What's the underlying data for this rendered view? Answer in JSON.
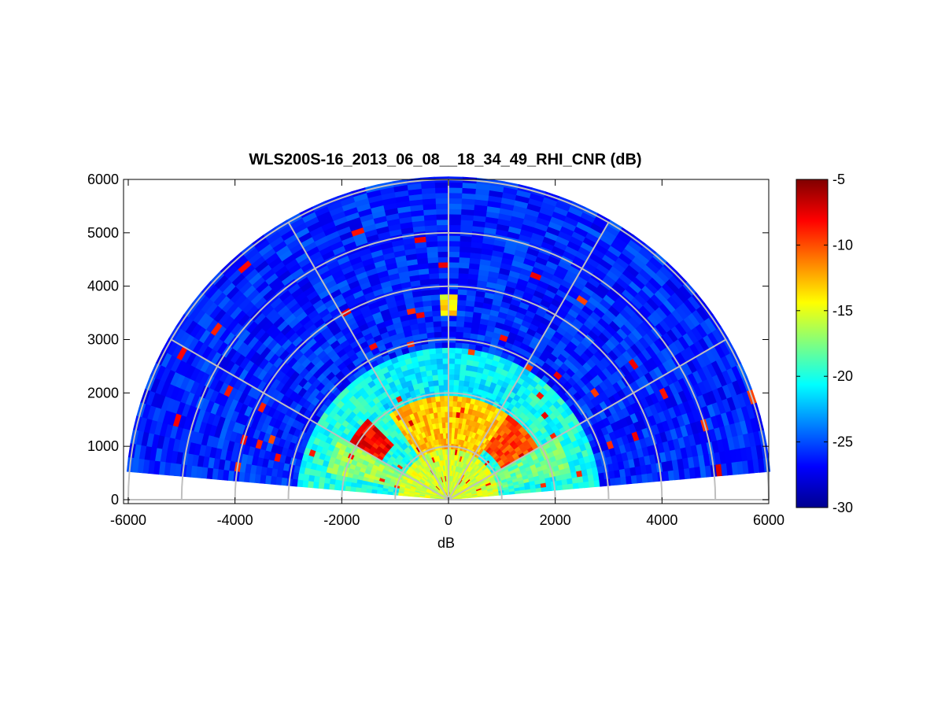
{
  "chart_data": {
    "type": "heatmap",
    "subtype": "polar-sector (RHI)",
    "title": "WLS200S-16_2013_06_08__18_34_49_RHI_CNR (dB)",
    "xlabel": "dB",
    "ylabel": "",
    "xlim": [
      -6000,
      6000
    ],
    "ylim": [
      0,
      6000
    ],
    "x_ticks": [
      -6000,
      -4000,
      -2000,
      0,
      2000,
      4000,
      6000
    ],
    "y_ticks": [
      0,
      1000,
      2000,
      3000,
      4000,
      5000,
      6000
    ],
    "x_tick_labels": [
      "-6000",
      "-4000",
      "-2000",
      "0",
      "2000",
      "4000",
      "6000"
    ],
    "y_tick_labels": [
      "0",
      "1000",
      "2000",
      "3000",
      "4000",
      "5000",
      "6000"
    ],
    "colormap": "jet",
    "clim": [
      -30,
      -5
    ],
    "colorbar_ticks": [
      -5,
      -10,
      -15,
      -20,
      -25,
      -30
    ],
    "colorbar_tick_labels": [
      "-5",
      "-10",
      "-15",
      "-20",
      "-25",
      "-30"
    ],
    "max_range": 6000,
    "range_rings": [
      1000,
      2000,
      3000,
      4000,
      5000,
      6000
    ],
    "angle_spokes_deg": [
      0,
      30,
      60,
      90,
      120,
      150,
      180
    ],
    "elevation_coverage_deg": [
      5,
      175
    ],
    "grid": true,
    "regions": [
      {
        "range": [
          0,
          1000
        ],
        "elevation_deg": [
          5,
          175
        ],
        "cnr_db": -15.5
      },
      {
        "range": [
          1000,
          2000
        ],
        "elevation_deg": [
          55,
          125
        ],
        "cnr_db": -13
      },
      {
        "range": [
          2000,
          2900
        ],
        "elevation_deg": [
          55,
          125
        ],
        "cnr_db": -21
      },
      {
        "range": [
          1000,
          2400
        ],
        "elevation_deg": [
          150,
          168
        ],
        "cnr_db": -17
      },
      {
        "range": [
          1000,
          2400
        ],
        "elevation_deg": [
          12,
          30
        ],
        "cnr_db": -18
      },
      {
        "range": [
          1200,
          2000
        ],
        "elevation_deg": [
          30,
          55
        ],
        "cnr_db": -10
      },
      {
        "range": [
          1500,
          2200
        ],
        "elevation_deg": [
          135,
          150
        ],
        "cnr_db": -8
      },
      {
        "range": [
          3500,
          3850
        ],
        "elevation_deg": [
          87,
          93
        ],
        "cnr_db": -14
      },
      {
        "range": [
          2900,
          6000
        ],
        "elevation_deg": [
          5,
          175
        ],
        "cnr_db": -26
      }
    ]
  }
}
